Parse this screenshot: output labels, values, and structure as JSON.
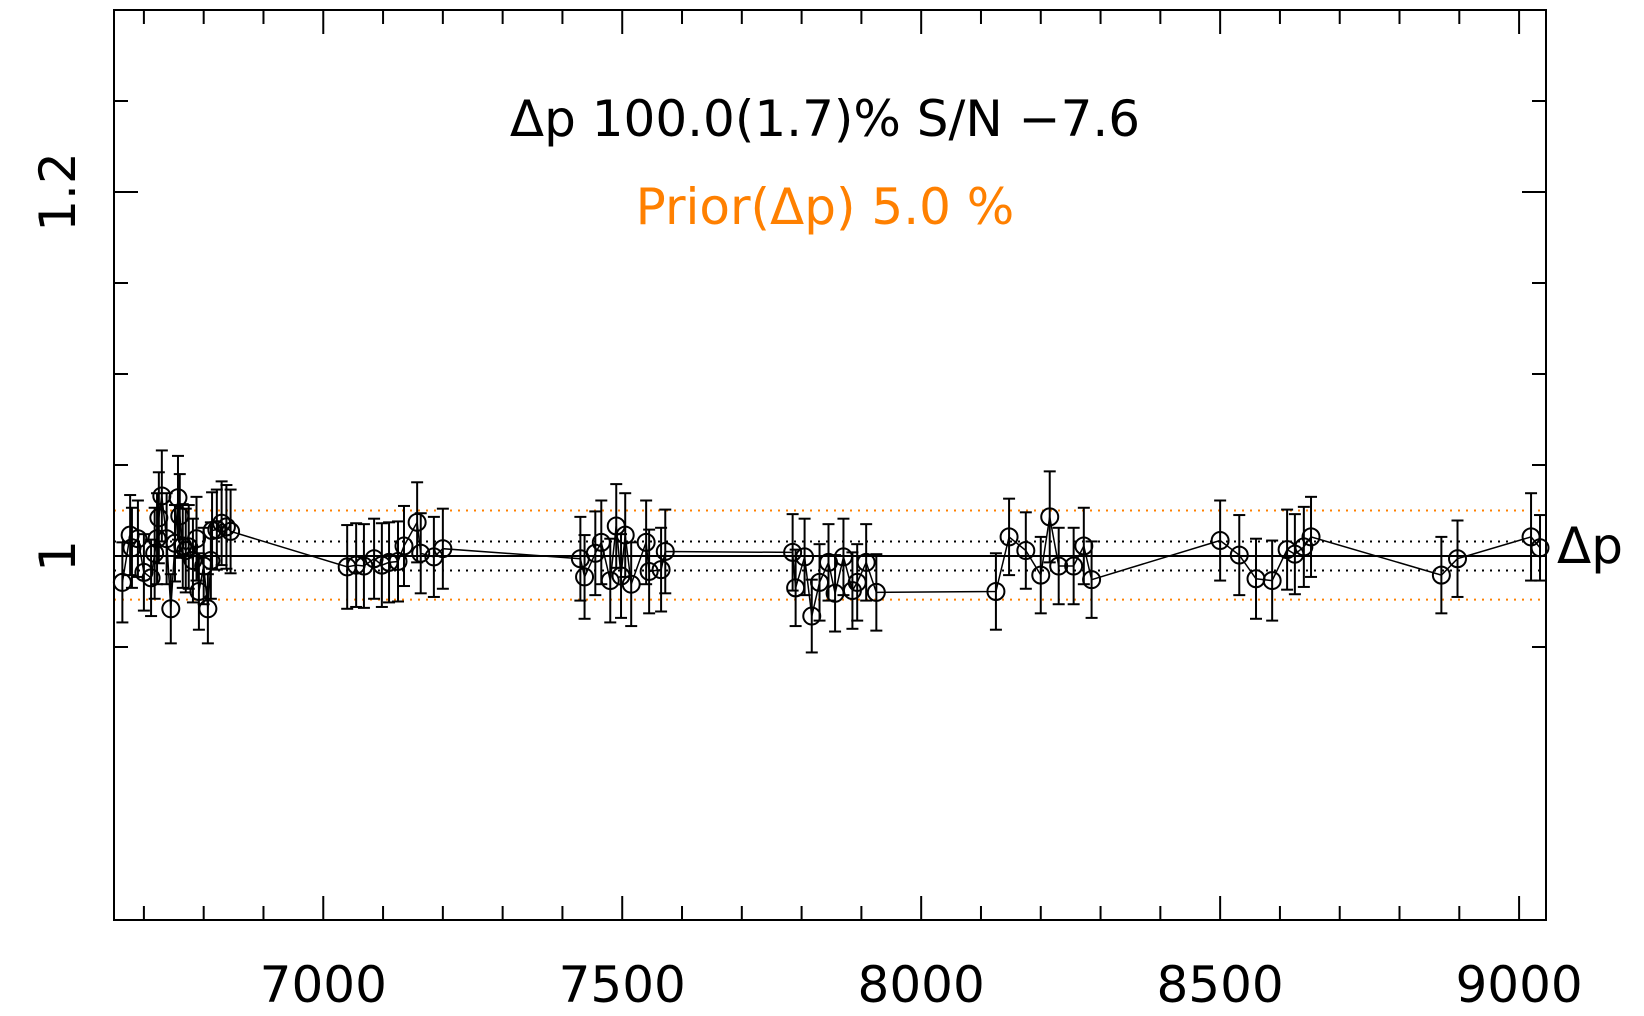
{
  "chart_data": {
    "type": "scatter",
    "annotations": {
      "line1": "Δp 100.0(1.7)% S/N −7.6",
      "line2": "Prior(Δp) 5.0 %",
      "right_label": "Δp"
    },
    "colors": {
      "ink": "#000000",
      "prior": "#ff8000"
    },
    "xlim": [
      6650,
      9045
    ],
    "ylim": [
      0.8,
      1.3
    ],
    "x_ticks": [
      {
        "value": 7000,
        "label": "7000"
      },
      {
        "value": 7500,
        "label": "7500"
      },
      {
        "value": 8000,
        "label": "8000"
      },
      {
        "value": 8500,
        "label": "8500"
      },
      {
        "value": 9000,
        "label": "9000"
      }
    ],
    "x_minor_step": 100,
    "y_ticks": [
      {
        "value": 1.0,
        "label": "1"
      },
      {
        "value": 1.2,
        "label": "1.2"
      }
    ],
    "y_minor_ticks": [
      0.95,
      1.05,
      1.1,
      1.15,
      1.25
    ],
    "reference_lines": [
      {
        "y": 1.0,
        "style": "solid",
        "color": "#000000"
      },
      {
        "y": 1.008,
        "style": "dotted",
        "color": "#000000"
      },
      {
        "y": 0.992,
        "style": "dotted",
        "color": "#000000"
      },
      {
        "y": 1.025,
        "style": "dotted",
        "color": "#ff8000"
      },
      {
        "y": 0.976,
        "style": "dotted",
        "color": "#ff8000"
      }
    ],
    "series": [
      {
        "points": [
          {
            "x": 6664,
            "y": 0.9855,
            "e": 0.022
          },
          {
            "x": 6677,
            "y": 1.0115,
            "e": 0.022
          },
          {
            "x": 6680,
            "y": 1.0045,
            "e": 0.022
          },
          {
            "x": 6690,
            "y": 1.0095,
            "e": 0.021
          },
          {
            "x": 6700,
            "y": 0.991,
            "e": 0.021
          },
          {
            "x": 6712,
            "y": 0.988,
            "e": 0.021
          },
          {
            "x": 6718,
            "y": 1.0015,
            "e": 0.025
          },
          {
            "x": 6722,
            "y": 1.0095,
            "e": 0.025
          },
          {
            "x": 6725,
            "y": 1.021,
            "e": 0.025
          },
          {
            "x": 6730,
            "y": 1.033,
            "e": 0.025
          },
          {
            "x": 6738,
            "y": 1.0095,
            "e": 0.025
          },
          {
            "x": 6745,
            "y": 0.971,
            "e": 0.019
          },
          {
            "x": 6752,
            "y": 1.007,
            "e": 0.021
          },
          {
            "x": 6757,
            "y": 1.032,
            "e": 0.023
          },
          {
            "x": 6760,
            "y": 1.022,
            "e": 0.023
          },
          {
            "x": 6765,
            "y": 1.0055,
            "e": 0.023
          },
          {
            "x": 6770,
            "y": 1.003,
            "e": 0.023
          },
          {
            "x": 6775,
            "y": 1.005,
            "e": 0.023
          },
          {
            "x": 6782,
            "y": 0.9975,
            "e": 0.023
          },
          {
            "x": 6788,
            "y": 1.0095,
            "e": 0.023
          },
          {
            "x": 6792,
            "y": 0.9805,
            "e": 0.021
          },
          {
            "x": 6800,
            "y": 0.9945,
            "e": 0.021
          },
          {
            "x": 6807,
            "y": 0.971,
            "e": 0.019
          },
          {
            "x": 6812,
            "y": 0.9975,
            "e": 0.021
          },
          {
            "x": 6814,
            "y": 1.014,
            "e": 0.021
          },
          {
            "x": 6822,
            "y": 1.0145,
            "e": 0.022
          },
          {
            "x": 6830,
            "y": 1.018,
            "e": 0.023
          },
          {
            "x": 6838,
            "y": 1.016,
            "e": 0.023
          },
          {
            "x": 6845,
            "y": 1.0135,
            "e": 0.023
          },
          {
            "x": 7040,
            "y": 0.994,
            "e": 0.023
          },
          {
            "x": 7055,
            "y": 0.995,
            "e": 0.023
          },
          {
            "x": 7068,
            "y": 0.9945,
            "e": 0.023
          },
          {
            "x": 7085,
            "y": 0.9985,
            "e": 0.022
          },
          {
            "x": 7098,
            "y": 0.995,
            "e": 0.023
          },
          {
            "x": 7110,
            "y": 0.9965,
            "e": 0.022
          },
          {
            "x": 7125,
            "y": 0.997,
            "e": 0.022
          },
          {
            "x": 7135,
            "y": 1.0055,
            "e": 0.022
          },
          {
            "x": 7157,
            "y": 1.0185,
            "e": 0.022
          },
          {
            "x": 7163,
            "y": 1.0015,
            "e": 0.022
          },
          {
            "x": 7185,
            "y": 0.9995,
            "e": 0.022
          },
          {
            "x": 7200,
            "y": 1.004,
            "e": 0.022
          },
          {
            "x": 7430,
            "y": 0.9985,
            "e": 0.023
          },
          {
            "x": 7437,
            "y": 0.9885,
            "e": 0.023
          },
          {
            "x": 7455,
            "y": 1.0015,
            "e": 0.023
          },
          {
            "x": 7465,
            "y": 1.0075,
            "e": 0.023
          },
          {
            "x": 7480,
            "y": 0.9865,
            "e": 0.023
          },
          {
            "x": 7490,
            "y": 1.0165,
            "e": 0.023
          },
          {
            "x": 7498,
            "y": 0.989,
            "e": 0.023
          },
          {
            "x": 7505,
            "y": 1.0115,
            "e": 0.023
          },
          {
            "x": 7515,
            "y": 0.9845,
            "e": 0.023
          },
          {
            "x": 7540,
            "y": 1.0075,
            "e": 0.023
          },
          {
            "x": 7545,
            "y": 0.9915,
            "e": 0.023
          },
          {
            "x": 7565,
            "y": 0.9925,
            "e": 0.023
          },
          {
            "x": 7572,
            "y": 1.0025,
            "e": 0.023
          },
          {
            "x": 7785,
            "y": 1.002,
            "e": 0.021
          },
          {
            "x": 7790,
            "y": 0.9825,
            "e": 0.021
          },
          {
            "x": 7805,
            "y": 0.9995,
            "e": 0.021
          },
          {
            "x": 7817,
            "y": 0.967,
            "e": 0.02
          },
          {
            "x": 7830,
            "y": 0.9855,
            "e": 0.021
          },
          {
            "x": 7845,
            "y": 0.9965,
            "e": 0.021
          },
          {
            "x": 7856,
            "y": 0.9795,
            "e": 0.021
          },
          {
            "x": 7870,
            "y": 0.9995,
            "e": 0.021
          },
          {
            "x": 7885,
            "y": 0.981,
            "e": 0.021
          },
          {
            "x": 7893,
            "y": 0.9855,
            "e": 0.021
          },
          {
            "x": 7908,
            "y": 0.9965,
            "e": 0.021
          },
          {
            "x": 7925,
            "y": 0.98,
            "e": 0.021
          },
          {
            "x": 8125,
            "y": 0.9805,
            "e": 0.021
          },
          {
            "x": 8147,
            "y": 1.0105,
            "e": 0.021
          },
          {
            "x": 8175,
            "y": 1.003,
            "e": 0.021
          },
          {
            "x": 8200,
            "y": 0.9895,
            "e": 0.021
          },
          {
            "x": 8215,
            "y": 1.0215,
            "e": 0.025
          },
          {
            "x": 8230,
            "y": 0.9945,
            "e": 0.021
          },
          {
            "x": 8255,
            "y": 0.9945,
            "e": 0.021
          },
          {
            "x": 8272,
            "y": 1.0055,
            "e": 0.021
          },
          {
            "x": 8285,
            "y": 0.987,
            "e": 0.021
          },
          {
            "x": 8500,
            "y": 1.0085,
            "e": 0.022
          },
          {
            "x": 8532,
            "y": 1.0005,
            "e": 0.022
          },
          {
            "x": 8560,
            "y": 0.9875,
            "e": 0.022
          },
          {
            "x": 8587,
            "y": 0.9865,
            "e": 0.022
          },
          {
            "x": 8612,
            "y": 1.0035,
            "e": 0.022
          },
          {
            "x": 8625,
            "y": 1.001,
            "e": 0.022
          },
          {
            "x": 8640,
            "y": 1.005,
            "e": 0.022
          },
          {
            "x": 8652,
            "y": 1.0105,
            "e": 0.022
          },
          {
            "x": 8870,
            "y": 0.9895,
            "e": 0.021
          },
          {
            "x": 8897,
            "y": 0.9985,
            "e": 0.021
          },
          {
            "x": 9020,
            "y": 1.0105,
            "e": 0.024
          },
          {
            "x": 9035,
            "y": 1.0045,
            "e": 0.018
          }
        ]
      }
    ]
  }
}
